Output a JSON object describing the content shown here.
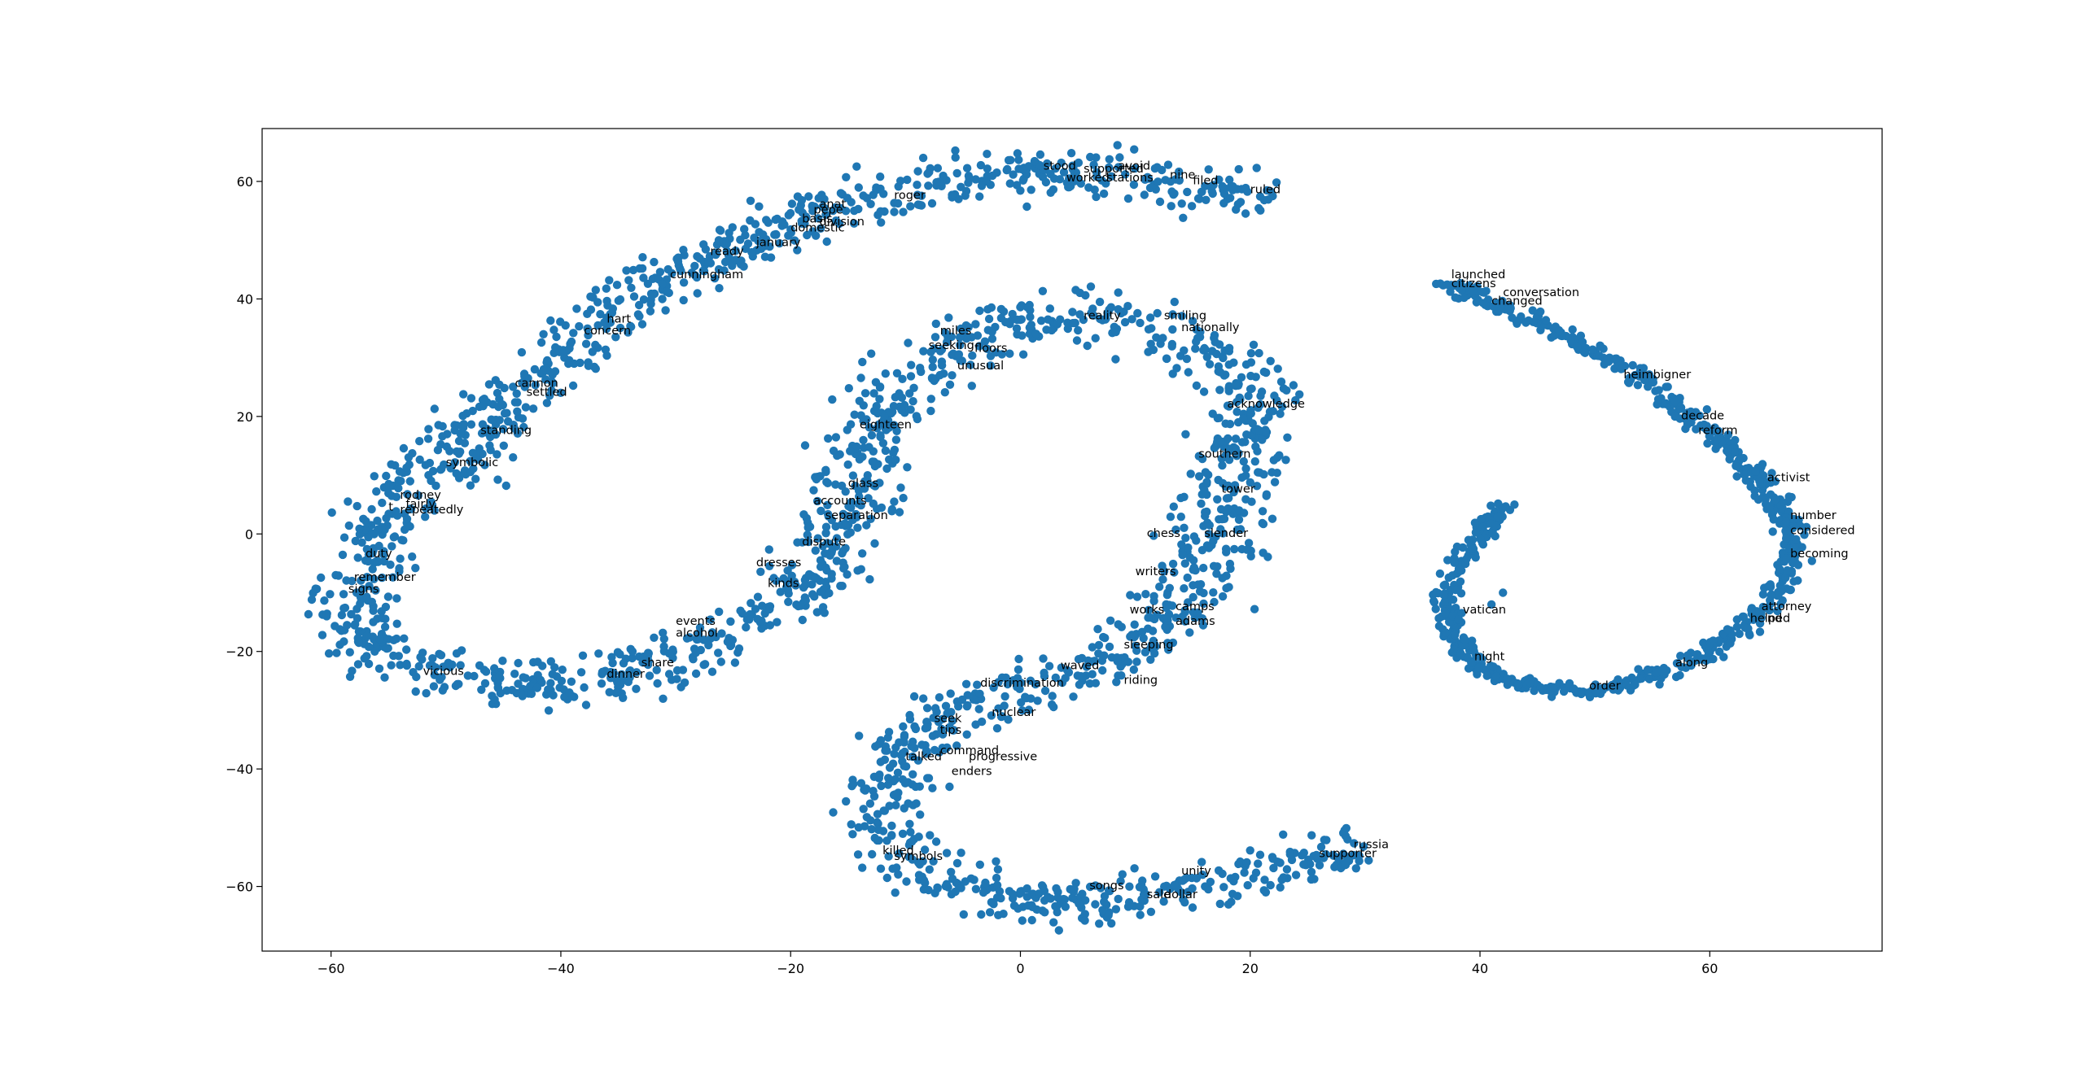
{
  "chart_data": {
    "type": "scatter",
    "title": "",
    "xlabel": "",
    "ylabel": "",
    "xlim": [
      -66,
      75
    ],
    "ylim": [
      -71,
      69
    ],
    "xticks": [
      -60,
      -40,
      -20,
      0,
      20,
      40,
      60
    ],
    "yticks": [
      -60,
      -40,
      -20,
      0,
      20,
      40,
      60
    ],
    "tick_labels_x": [
      "−60",
      "−40",
      "−20",
      "0",
      "20",
      "40",
      "60"
    ],
    "tick_labels_y": [
      "−60",
      "−40",
      "−20",
      "0",
      "20",
      "40",
      "60"
    ],
    "grid": false,
    "legend": "none",
    "point_color": "#1f77b4",
    "clusters": [
      {
        "spine": [
          [
            22,
            56
          ],
          [
            16,
            59
          ],
          [
            10,
            61
          ],
          [
            4,
            62
          ],
          [
            -2,
            61.5
          ],
          [
            -8,
            60
          ],
          [
            -14,
            57
          ],
          [
            -20,
            53
          ],
          [
            -26,
            48
          ],
          [
            -32,
            42
          ],
          [
            -38,
            34
          ],
          [
            -43,
            26
          ],
          [
            -47,
            18
          ],
          [
            -51,
            10
          ],
          [
            -55,
            3
          ],
          [
            -57,
            -3
          ],
          [
            -58,
            -8
          ],
          [
            -58,
            -14
          ],
          [
            -56,
            -19
          ],
          [
            -52,
            -23
          ],
          [
            -47,
            -25
          ],
          [
            -42,
            -26
          ],
          [
            -37,
            -25
          ],
          [
            -32,
            -23
          ],
          [
            -27,
            -19
          ],
          [
            -22,
            -14
          ],
          [
            -18,
            -8
          ],
          [
            -16,
            -2
          ],
          [
            -15,
            4
          ],
          [
            -14,
            11
          ],
          [
            -13,
            18
          ],
          [
            -11,
            24
          ],
          [
            -8,
            29
          ],
          [
            -4,
            33
          ],
          [
            0,
            36
          ],
          [
            4,
            37.5
          ],
          [
            9,
            37
          ],
          [
            14,
            34
          ],
          [
            18,
            30
          ],
          [
            20,
            25
          ],
          [
            20,
            19
          ],
          [
            19,
            13
          ],
          [
            18,
            7
          ],
          [
            17,
            0
          ],
          [
            16,
            -6
          ],
          [
            14,
            -12
          ],
          [
            12,
            -17
          ],
          [
            9,
            -21
          ],
          [
            5,
            -24
          ],
          [
            0,
            -27
          ],
          [
            -5,
            -30
          ],
          [
            -9,
            -34
          ],
          [
            -11,
            -40
          ],
          [
            -12,
            -46
          ],
          [
            -11,
            -52
          ],
          [
            -8,
            -57
          ],
          [
            -4,
            -61
          ],
          [
            0,
            -63
          ],
          [
            5,
            -63
          ],
          [
            10,
            -62
          ],
          [
            15,
            -60
          ],
          [
            20,
            -58
          ],
          [
            25,
            -56
          ],
          [
            30,
            -53
          ]
        ],
        "count": 2300,
        "spread": 2.0
      },
      {
        "spine": [
          [
            37,
            43
          ],
          [
            40,
            40
          ],
          [
            43,
            38
          ],
          [
            47,
            34
          ],
          [
            51,
            30
          ],
          [
            55,
            25
          ],
          [
            59,
            19
          ],
          [
            62,
            14
          ],
          [
            65,
            8
          ],
          [
            67,
            2
          ],
          [
            67,
            -4
          ],
          [
            66,
            -10
          ],
          [
            63,
            -16
          ],
          [
            59,
            -21
          ],
          [
            54,
            -25
          ],
          [
            49,
            -27
          ],
          [
            44,
            -26
          ],
          [
            40,
            -23
          ],
          [
            38,
            -18
          ],
          [
            37,
            -12
          ],
          [
            38,
            -6
          ],
          [
            40,
            0
          ],
          [
            42,
            5
          ]
        ],
        "count": 780,
        "spread": 0.6
      }
    ],
    "outliers": [
      [
        42,
        -10
      ],
      [
        43,
        5
      ],
      [
        41,
        -12
      ]
    ],
    "annotations": [
      {
        "x": 2,
        "y": 62,
        "text": "stood"
      },
      {
        "x": 5.5,
        "y": 61.5,
        "text": "supported"
      },
      {
        "x": 8.5,
        "y": 62,
        "text": "avoid"
      },
      {
        "x": 4,
        "y": 60,
        "text": "worked"
      },
      {
        "x": 7.5,
        "y": 60,
        "text": "stations"
      },
      {
        "x": 13,
        "y": 60.5,
        "text": "nine"
      },
      {
        "x": 15,
        "y": 59.5,
        "text": "filed"
      },
      {
        "x": 20,
        "y": 58,
        "text": "ruled"
      },
      {
        "x": -11,
        "y": 57,
        "text": "roger"
      },
      {
        "x": -17.5,
        "y": 55.5,
        "text": "anat"
      },
      {
        "x": -18,
        "y": 54.5,
        "text": "pepe"
      },
      {
        "x": -19,
        "y": 53,
        "text": "basis"
      },
      {
        "x": -17.5,
        "y": 52.5,
        "text": "division"
      },
      {
        "x": -20,
        "y": 51.5,
        "text": "domestic"
      },
      {
        "x": -23,
        "y": 49,
        "text": "january"
      },
      {
        "x": -27,
        "y": 47.5,
        "text": "ready"
      },
      {
        "x": -30.5,
        "y": 43.5,
        "text": "cunningham"
      },
      {
        "x": -36,
        "y": 36,
        "text": "hart"
      },
      {
        "x": -38,
        "y": 34,
        "text": "concern"
      },
      {
        "x": -44,
        "y": 25,
        "text": "cannon"
      },
      {
        "x": -43,
        "y": 23.5,
        "text": "settled"
      },
      {
        "x": -47,
        "y": 17,
        "text": "standing"
      },
      {
        "x": -50,
        "y": 11.5,
        "text": "symbolic"
      },
      {
        "x": -54,
        "y": 6,
        "text": "rodney"
      },
      {
        "x": -53.5,
        "y": 4.5,
        "text": "fairly"
      },
      {
        "x": -55,
        "y": 4,
        "text": "t"
      },
      {
        "x": -54,
        "y": 3.5,
        "text": "repeatedly"
      },
      {
        "x": -57,
        "y": -4,
        "text": "duty"
      },
      {
        "x": -58,
        "y": -8,
        "text": "remember"
      },
      {
        "x": -58.5,
        "y": -10,
        "text": "signs"
      },
      {
        "x": -52,
        "y": -24,
        "text": "vicious"
      },
      {
        "x": -36,
        "y": -24.5,
        "text": "dinner"
      },
      {
        "x": -33,
        "y": -22.5,
        "text": "share"
      },
      {
        "x": -30,
        "y": -15.5,
        "text": "events"
      },
      {
        "x": -30,
        "y": -17.5,
        "text": "alcohol"
      },
      {
        "x": -23,
        "y": -5.5,
        "text": "dresses"
      },
      {
        "x": -22,
        "y": -9,
        "text": "kinds"
      },
      {
        "x": -19,
        "y": -2,
        "text": "dispute"
      },
      {
        "x": -17,
        "y": 2.5,
        "text": "separation"
      },
      {
        "x": -18,
        "y": 5,
        "text": "accounts"
      },
      {
        "x": -15,
        "y": 8,
        "text": "glass"
      },
      {
        "x": -14,
        "y": 18,
        "text": "eighteen"
      },
      {
        "x": -7,
        "y": 34,
        "text": "miles"
      },
      {
        "x": -8,
        "y": 31.5,
        "text": "seeking"
      },
      {
        "x": -4,
        "y": 31,
        "text": "floors"
      },
      {
        "x": -5.5,
        "y": 28,
        "text": "unusual"
      },
      {
        "x": 5.5,
        "y": 36.5,
        "text": "reality"
      },
      {
        "x": 12.5,
        "y": 36.5,
        "text": "smiling"
      },
      {
        "x": 14,
        "y": 34.5,
        "text": "nationally"
      },
      {
        "x": 18,
        "y": 21.5,
        "text": "acknowledge"
      },
      {
        "x": 15.5,
        "y": 13,
        "text": "southern"
      },
      {
        "x": 17.5,
        "y": 7,
        "text": "tower"
      },
      {
        "x": 11,
        "y": -0.5,
        "text": "chess"
      },
      {
        "x": 16,
        "y": -0.5,
        "text": "slender"
      },
      {
        "x": 10,
        "y": -7,
        "text": "writers"
      },
      {
        "x": 9.5,
        "y": -13.5,
        "text": "works"
      },
      {
        "x": 13.5,
        "y": -13,
        "text": "camps"
      },
      {
        "x": 13.5,
        "y": -15.5,
        "text": "adams"
      },
      {
        "x": 9,
        "y": -19.5,
        "text": "sleeping"
      },
      {
        "x": 3.5,
        "y": -23,
        "text": "waved"
      },
      {
        "x": 9,
        "y": -25.5,
        "text": "riding"
      },
      {
        "x": -3.5,
        "y": -26,
        "text": "discrimination"
      },
      {
        "x": -2.5,
        "y": -31,
        "text": "nuclear"
      },
      {
        "x": -7.5,
        "y": -32,
        "text": "seek"
      },
      {
        "x": -7,
        "y": -34,
        "text": "tips"
      },
      {
        "x": -7,
        "y": -37.5,
        "text": "command"
      },
      {
        "x": -10,
        "y": -38.5,
        "text": "talked"
      },
      {
        "x": -4.5,
        "y": -38.5,
        "text": "progressive"
      },
      {
        "x": -6,
        "y": -41,
        "text": "enders"
      },
      {
        "x": -12,
        "y": -54.5,
        "text": "killed"
      },
      {
        "x": -11,
        "y": -55.5,
        "text": "symbols"
      },
      {
        "x": 6,
        "y": -60.5,
        "text": "songs"
      },
      {
        "x": 11,
        "y": -62,
        "text": "sale"
      },
      {
        "x": 12.5,
        "y": -62,
        "text": "dollar"
      },
      {
        "x": 14,
        "y": -58,
        "text": "unity"
      },
      {
        "x": 26,
        "y": -55,
        "text": "supporter"
      },
      {
        "x": 29,
        "y": -53.5,
        "text": "russia"
      },
      {
        "x": 37.5,
        "y": 43.5,
        "text": "launched"
      },
      {
        "x": 37.5,
        "y": 42,
        "text": "citizens"
      },
      {
        "x": 42,
        "y": 40.5,
        "text": "conversation"
      },
      {
        "x": 41,
        "y": 39,
        "text": "changed"
      },
      {
        "x": 52.5,
        "y": 26.5,
        "text": "heimbigner"
      },
      {
        "x": 57.5,
        "y": 19.5,
        "text": "decade"
      },
      {
        "x": 59,
        "y": 17,
        "text": "reform"
      },
      {
        "x": 65,
        "y": 9,
        "text": "activist"
      },
      {
        "x": 67,
        "y": 2.5,
        "text": "number"
      },
      {
        "x": 67,
        "y": 0,
        "text": "considered"
      },
      {
        "x": 67,
        "y": -4,
        "text": "becoming"
      },
      {
        "x": 64.5,
        "y": -13,
        "text": "attorney"
      },
      {
        "x": 63.5,
        "y": -15,
        "text": "helped"
      },
      {
        "x": 65,
        "y": -15,
        "text": "nd"
      },
      {
        "x": 38.5,
        "y": -13.5,
        "text": "vatican"
      },
      {
        "x": 39.5,
        "y": -21.5,
        "text": "night"
      },
      {
        "x": 57,
        "y": -22.5,
        "text": "along"
      },
      {
        "x": 49.5,
        "y": -26.5,
        "text": "order"
      }
    ]
  }
}
